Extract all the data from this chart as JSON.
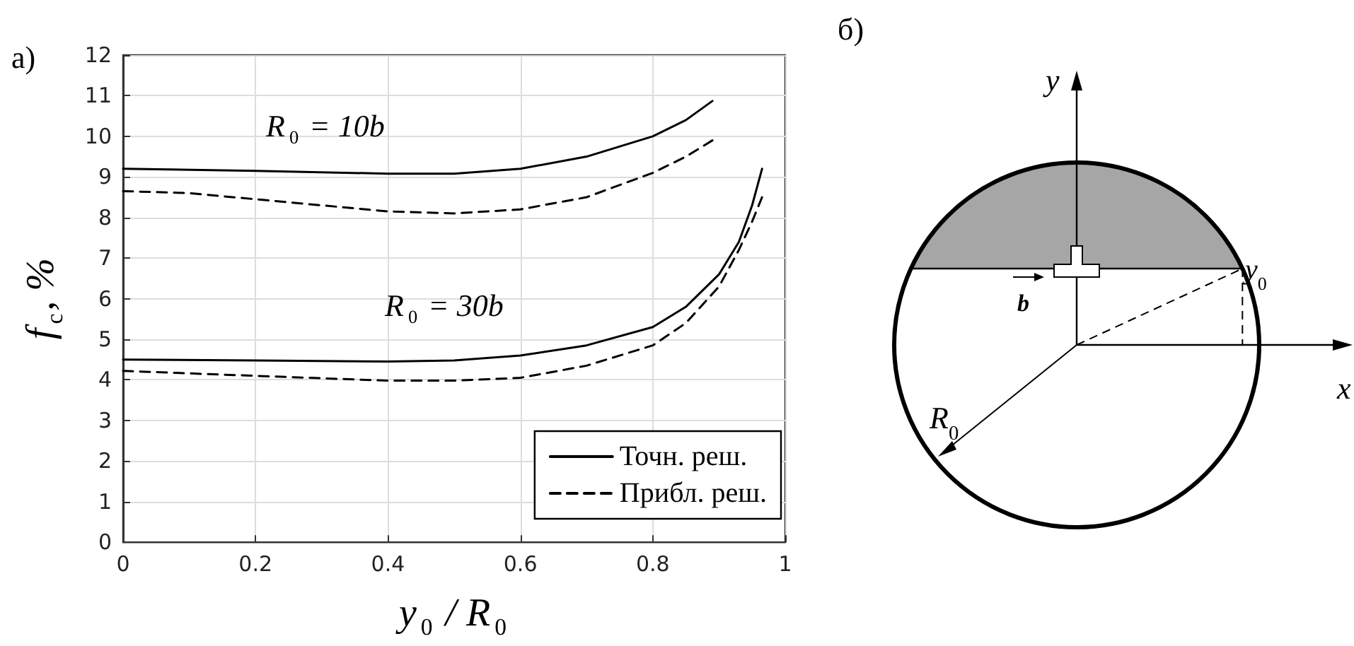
{
  "chart_data": {
    "type": "line",
    "xlabel": "y$_{0}$ / R$_{0}$",
    "ylabel": "f$_{c}$, %",
    "xlim": [
      0,
      1
    ],
    "xticks": [
      0,
      0.2,
      0.4,
      0.6,
      0.8,
      1
    ],
    "ylim": [
      0,
      12
    ],
    "yticks": [
      0,
      1,
      2,
      3,
      4,
      5,
      6,
      7,
      8,
      9,
      10,
      11,
      12
    ],
    "grid": true,
    "legend": "bottom right",
    "marker": "none",
    "series": [
      {
        "name": "Точн. реш.",
        "color": "#000000",
        "line_style": "solid",
        "x": [
          0,
          0.2,
          0.4,
          0.5,
          0.6,
          0.7,
          0.8,
          0.85,
          0.89
        ],
        "values": [
          9.2,
          9.15,
          9.08,
          9.08,
          9.2,
          9.5,
          10.0,
          10.4,
          10.87
        ]
      },
      {
        "name": "Прибл. реш.",
        "color": "#000000",
        "line_style": "dashed",
        "x": [
          0,
          0.1,
          0.2,
          0.3,
          0.4,
          0.5,
          0.6,
          0.7,
          0.8,
          0.85,
          0.89
        ],
        "values": [
          8.65,
          8.6,
          8.45,
          8.3,
          8.15,
          8.1,
          8.2,
          8.5,
          9.1,
          9.5,
          9.9
        ]
      },
      {
        "color": "#000000",
        "line_style": "solid",
        "x": [
          0,
          0.2,
          0.4,
          0.5,
          0.6,
          0.7,
          0.8,
          0.85,
          0.9,
          0.93,
          0.95,
          0.965
        ],
        "values": [
          4.5,
          4.48,
          4.45,
          4.48,
          4.6,
          4.85,
          5.3,
          5.8,
          6.6,
          7.4,
          8.3,
          9.2
        ]
      },
      {
        "color": "#000000",
        "line_style": "dashed",
        "x": [
          0,
          0.2,
          0.4,
          0.5,
          0.6,
          0.7,
          0.8,
          0.85,
          0.9,
          0.93,
          0.95,
          0.965
        ],
        "values": [
          4.22,
          4.1,
          3.98,
          3.98,
          4.05,
          4.35,
          4.85,
          5.4,
          6.3,
          7.2,
          7.9,
          8.5
        ]
      }
    ],
    "annotations": [
      "R$_{0}$ = 10b",
      "R$_{0}$ = 30b",
      "а)",
      "б)",
      "y",
      "y$_{0}$",
      "b",
      "x",
      "R$_{0}$"
    ]
  }
}
